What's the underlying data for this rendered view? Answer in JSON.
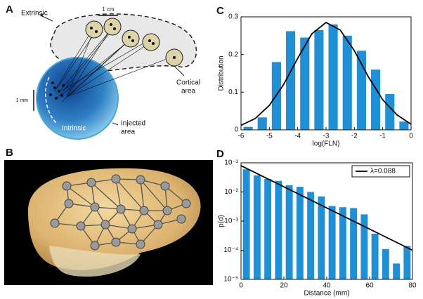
{
  "panel_labels": [
    "A",
    "B",
    "C",
    "D"
  ],
  "diagram": {
    "extrinsic": "Extrinsic",
    "scale_cm": "1 cm",
    "scale_mm": "1 mm",
    "intrinsic": "Intrinsic",
    "injected": [
      "Injected",
      "area"
    ],
    "cortical": [
      "Cortical",
      "area"
    ]
  },
  "chart_data": [
    {
      "type": "histogram",
      "xlabel": "log(FLN)",
      "ylabel": "Distribution",
      "bins": [
        -6,
        -5.5,
        -5,
        -4.5,
        -4,
        -3.5,
        -3,
        -2.5,
        -2,
        -1.5,
        -1,
        -0.5,
        0
      ],
      "values": [
        0.008,
        0.033,
        0.18,
        0.262,
        0.245,
        0.265,
        0.28,
        0.25,
        0.21,
        0.16,
        0.095,
        0.022
      ],
      "color": "#1f8fd6",
      "fit": {
        "color": "#000000",
        "x": [
          -6,
          -5.5,
          -5,
          -4.5,
          -4,
          -3.5,
          -3,
          -2.5,
          -2,
          -1.5,
          -1,
          -0.5,
          0
        ],
        "values": [
          0.012,
          0.03,
          0.065,
          0.12,
          0.19,
          0.255,
          0.285,
          0.265,
          0.21,
          0.14,
          0.08,
          0.04,
          0.015
        ]
      },
      "xlim": [
        -6,
        0
      ],
      "xticks": [
        -6,
        -5,
        -4,
        -3,
        -2,
        -1,
        0
      ],
      "ylim": [
        0,
        0.3
      ],
      "yticks": [
        0,
        0.1,
        0.2,
        0.3
      ]
    },
    {
      "type": "histogram",
      "xlabel": "Distance (mm)",
      "ylabel": "p(d)",
      "log_y": true,
      "bins": [
        0,
        5,
        10,
        15,
        20,
        25,
        30,
        35,
        40,
        45,
        50,
        55,
        60,
        65,
        70,
        75,
        80
      ],
      "values": [
        0.06,
        0.037,
        0.028,
        0.024,
        0.017,
        0.015,
        0.01,
        0.007,
        0.0033,
        0.003,
        0.0028,
        0.0017,
        0.00037,
        0.00011,
        3.5e-05,
        0.00014
      ],
      "color": "#1f8fd6",
      "fit": {
        "name": "λ=0.088",
        "color": "#000000",
        "x": [
          0,
          80
        ],
        "values": [
          0.08,
          0.0001
        ]
      },
      "legend": "upper right",
      "xlim": [
        0,
        80
      ],
      "xticks": [
        0,
        20,
        40,
        60,
        80
      ],
      "ylim": [
        1e-05,
        0.1
      ],
      "yticks": [
        {
          "value": 1e-05,
          "label": "10⁻⁵"
        },
        {
          "value": 0.0001,
          "label": "10⁻⁴"
        },
        {
          "value": 0.001,
          "label": "10⁻³"
        },
        {
          "value": 0.01,
          "label": "10⁻²"
        },
        {
          "value": 0.1,
          "label": "10⁻¹"
        }
      ]
    }
  ]
}
